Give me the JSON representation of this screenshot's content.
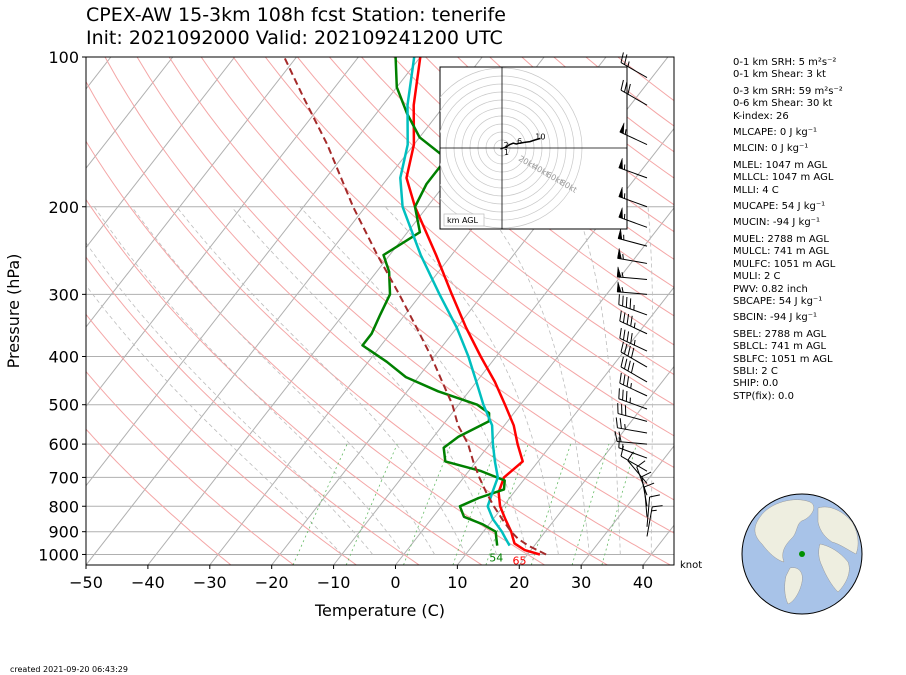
{
  "title": {
    "line1": "CPEX-AW 15-3km  108h fcst  Station: tenerife",
    "line2": "Init: 2021092000  Valid: 202109241200 UTC"
  },
  "chart_data": {
    "type": "line",
    "subtype": "skew-T log-P diagram",
    "xlabel": "Temperature (C)",
    "ylabel": "Pressure (hPa)",
    "xlim": [
      -50,
      45
    ],
    "ylim_pressure": [
      1050,
      100
    ],
    "y_scale": "log (inverted)",
    "xticks": [
      -50,
      -40,
      -30,
      -20,
      -10,
      0,
      10,
      20,
      30,
      40
    ],
    "xtick_labels": [
      "−50",
      "−40",
      "−30",
      "−20",
      "−10",
      "0",
      "10",
      "20",
      "30",
      "40"
    ],
    "yticks": [
      100,
      200,
      300,
      400,
      500,
      600,
      700,
      800,
      900,
      1000
    ],
    "ytick_labels": [
      "100",
      "200",
      "300",
      "400",
      "500",
      "600",
      "700",
      "800",
      "900",
      "1000"
    ],
    "series": [
      {
        "role": "temperature",
        "color": "#ff0000",
        "points": [
          [
            1000,
            22
          ],
          [
            980,
            19
          ],
          [
            950,
            16.5
          ],
          [
            925,
            15.5
          ],
          [
            900,
            14.5
          ],
          [
            850,
            12
          ],
          [
            800,
            9.5
          ],
          [
            750,
            7.5
          ],
          [
            700,
            6.5
          ],
          [
            650,
            7.5
          ],
          [
            600,
            4.5
          ],
          [
            550,
            1.5
          ],
          [
            500,
            -2.5
          ],
          [
            450,
            -7
          ],
          [
            400,
            -12.5
          ],
          [
            350,
            -18.5
          ],
          [
            300,
            -25
          ],
          [
            250,
            -32.5
          ],
          [
            200,
            -42
          ],
          [
            175,
            -47
          ],
          [
            150,
            -50
          ],
          [
            125,
            -55
          ],
          [
            100,
            -60
          ]
        ]
      },
      {
        "role": "dewpoint",
        "color": "#008000",
        "points": [
          [
            960,
            14
          ],
          [
            930,
            13
          ],
          [
            900,
            12
          ],
          [
            870,
            9
          ],
          [
            840,
            5
          ],
          [
            800,
            3
          ],
          [
            770,
            5
          ],
          [
            740,
            8
          ],
          [
            710,
            7
          ],
          [
            680,
            2
          ],
          [
            650,
            -5
          ],
          [
            610,
            -7
          ],
          [
            580,
            -6
          ],
          [
            540,
            -3
          ],
          [
            520,
            -4
          ],
          [
            500,
            -7
          ],
          [
            470,
            -15
          ],
          [
            440,
            -22
          ],
          [
            410,
            -27
          ],
          [
            380,
            -33
          ],
          [
            360,
            -33
          ],
          [
            330,
            -34
          ],
          [
            300,
            -35
          ],
          [
            270,
            -38
          ],
          [
            250,
            -41
          ],
          [
            225,
            -38
          ],
          [
            200,
            -42
          ],
          [
            180,
            -43
          ],
          [
            160,
            -43
          ],
          [
            145,
            -50
          ],
          [
            130,
            -55
          ],
          [
            115,
            -60
          ],
          [
            100,
            -64
          ]
        ]
      },
      {
        "role": "wet-bulb",
        "color": "#00bfbf",
        "points": [
          [
            960,
            16
          ],
          [
            930,
            14.5
          ],
          [
            900,
            13
          ],
          [
            850,
            10
          ],
          [
            800,
            7.5
          ],
          [
            750,
            6.5
          ],
          [
            700,
            5.5
          ],
          [
            650,
            3
          ],
          [
            600,
            0.5
          ],
          [
            550,
            -2
          ],
          [
            500,
            -6
          ],
          [
            450,
            -10
          ],
          [
            400,
            -14.5
          ],
          [
            350,
            -20
          ],
          [
            300,
            -27
          ],
          [
            250,
            -35
          ],
          [
            200,
            -44
          ],
          [
            175,
            -48
          ],
          [
            150,
            -51
          ],
          [
            125,
            -56
          ],
          [
            100,
            -61
          ]
        ]
      },
      {
        "role": "parcel",
        "color": "#a52a2a",
        "dashed": true,
        "points": [
          [
            1000,
            23
          ],
          [
            960,
            19
          ],
          [
            930,
            16.5
          ],
          [
            900,
            14.5
          ],
          [
            850,
            11.5
          ],
          [
            800,
            8.5
          ],
          [
            750,
            5.5
          ],
          [
            700,
            2.5
          ],
          [
            650,
            -0.5
          ],
          [
            600,
            -3.5
          ],
          [
            550,
            -7.5
          ],
          [
            500,
            -11
          ],
          [
            450,
            -15.5
          ],
          [
            400,
            -20.5
          ],
          [
            350,
            -26.5
          ],
          [
            300,
            -33.5
          ],
          [
            250,
            -42
          ],
          [
            200,
            -52
          ],
          [
            150,
            -64
          ],
          [
            120,
            -74
          ],
          [
            100,
            -82
          ]
        ]
      }
    ],
    "surface_labels": {
      "dewpoint": "54",
      "temperature": "65"
    },
    "wind_unit_label": "knot",
    "wind_barbs": [
      {
        "p": 110,
        "dir": 300,
        "spd": 25
      },
      {
        "p": 125,
        "dir": 300,
        "spd": 30
      },
      {
        "p": 150,
        "dir": 295,
        "spd": 55
      },
      {
        "p": 175,
        "dir": 290,
        "spd": 55
      },
      {
        "p": 200,
        "dir": 290,
        "spd": 55
      },
      {
        "p": 220,
        "dir": 290,
        "spd": 55
      },
      {
        "p": 240,
        "dir": 285,
        "spd": 55
      },
      {
        "p": 260,
        "dir": 280,
        "spd": 55
      },
      {
        "p": 280,
        "dir": 275,
        "spd": 55
      },
      {
        "p": 300,
        "dir": 275,
        "spd": 55
      },
      {
        "p": 330,
        "dir": 290,
        "spd": 45
      },
      {
        "p": 360,
        "dir": 295,
        "spd": 45
      },
      {
        "p": 390,
        "dir": 295,
        "spd": 45
      },
      {
        "p": 420,
        "dir": 300,
        "spd": 40
      },
      {
        "p": 450,
        "dir": 300,
        "spd": 40
      },
      {
        "p": 480,
        "dir": 295,
        "spd": 35
      },
      {
        "p": 510,
        "dir": 290,
        "spd": 35
      },
      {
        "p": 540,
        "dir": 285,
        "spd": 30
      },
      {
        "p": 570,
        "dir": 280,
        "spd": 25
      },
      {
        "p": 600,
        "dir": 275,
        "spd": 20
      },
      {
        "p": 640,
        "dir": 290,
        "spd": 15
      },
      {
        "p": 680,
        "dir": 300,
        "spd": 10
      },
      {
        "p": 720,
        "dir": 320,
        "spd": 10
      },
      {
        "p": 760,
        "dir": 340,
        "spd": 10
      },
      {
        "p": 800,
        "dir": 350,
        "spd": 10
      },
      {
        "p": 840,
        "dir": 355,
        "spd": 10
      },
      {
        "p": 880,
        "dir": 5,
        "spd": 10
      },
      {
        "p": 920,
        "dir": 10,
        "spd": 15
      }
    ],
    "hodograph": {
      "label": "km AGL",
      "ring_labels": [
        "20kt",
        "40kt",
        "60kt",
        "80kt"
      ],
      "points": [
        [
          1,
          -2,
          -1
        ],
        [
          2,
          5,
          1
        ],
        [
          3,
          9,
          4
        ],
        [
          4,
          14,
          6
        ],
        [
          5,
          18,
          5
        ],
        [
          6,
          22,
          6
        ],
        [
          7,
          28,
          7
        ],
        [
          8,
          35,
          8
        ],
        [
          9,
          41,
          10
        ],
        [
          10,
          48,
          12
        ]
      ],
      "point_labels": [
        "1",
        "2",
        "6",
        "10"
      ]
    },
    "legend": "none"
  },
  "stats": [
    {
      "text": "0-1 km SRH: 5 m²s⁻²"
    },
    {
      "text": "0-1 km Shear: 3 kt"
    },
    {
      "text": "0-3 km SRH: 59 m²s⁻²",
      "gap": true
    },
    {
      "text": "0-6 km Shear: 30 kt"
    },
    {
      "text": "K-index: 26"
    },
    {
      "text": "MLCAPE: 0 J kg⁻¹",
      "gap": true
    },
    {
      "text": "MLCIN: 0 J kg⁻¹",
      "gap": true
    },
    {
      "text": "MLEL: 1047 m AGL",
      "gap": true
    },
    {
      "text": "MLLCL: 1047 m AGL"
    },
    {
      "text": "MLLI: 4 C"
    },
    {
      "text": "MUCAPE: 54 J kg⁻¹",
      "gap": true
    },
    {
      "text": "MUCIN: -94 J kg⁻¹",
      "gap": true
    },
    {
      "text": "MUEL: 2788 m AGL",
      "gap": true
    },
    {
      "text": "MULCL: 741 m AGL"
    },
    {
      "text": "MULFC: 1051 m AGL"
    },
    {
      "text": "MULI: 2 C"
    },
    {
      "text": "PWV: 0.82 inch"
    },
    {
      "text": "SBCAPE: 54 J kg⁻¹"
    },
    {
      "text": "SBCIN: -94 J kg⁻¹",
      "gap": true
    },
    {
      "text": "SBEL: 2788 m AGL",
      "gap": true
    },
    {
      "text": "SBLCL: 741 m AGL"
    },
    {
      "text": "SBLFC: 1051 m AGL"
    },
    {
      "text": "SBLI: 2 C"
    },
    {
      "text": "SHIP: 0.0"
    },
    {
      "text": "STP(fix): 0.0"
    }
  ],
  "footer": {
    "created": "created 2021-09-20 06:43:29"
  },
  "colors": {
    "temperature": "#ff0000",
    "dewpoint": "#008000",
    "wetbulb": "#00bfbf",
    "parcel": "#a52a2a",
    "isotherm": "#b0b0b0",
    "dry_adiabat": "#f4a6a6",
    "moist_adiabat": "#bdbdbd",
    "mixing_ratio": "#66bb66",
    "globe_ocean": "#a8c3e8",
    "globe_land": "#eeeee0",
    "station_marker": "#009000"
  }
}
